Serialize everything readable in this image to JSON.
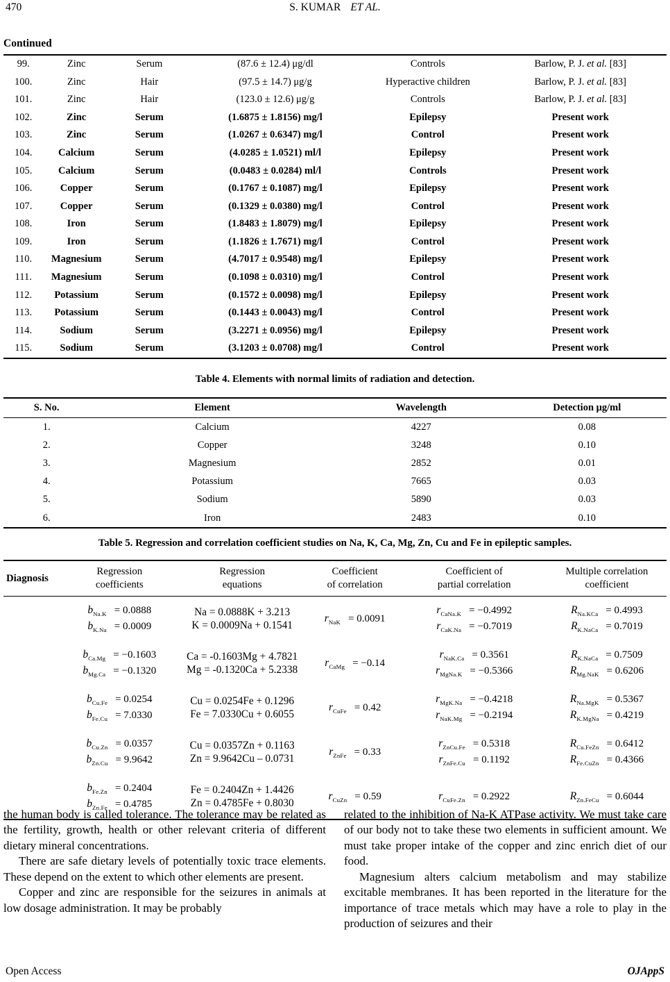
{
  "header": {
    "page_number": "470",
    "author": "S. KUMAR",
    "etal": "ET  AL."
  },
  "continued_table": {
    "label": "Continued",
    "rows": [
      {
        "no": "99.",
        "element": "Zinc",
        "sample": "Serum",
        "value": "(87.6 ± 12.4) μg/dl",
        "condition": "Controls",
        "ref_pre": "Barlow, P. J. ",
        "ref_it": "et al.",
        "ref_post": " [83]",
        "bold": false
      },
      {
        "no": "100.",
        "element": "Zinc",
        "sample": "Hair",
        "value": "(97.5 ± 14.7) μg/g",
        "condition": "Hyperactive children",
        "ref_pre": "Barlow, P. J. ",
        "ref_it": "et al.",
        "ref_post": " [83]",
        "bold": false
      },
      {
        "no": "101.",
        "element": "Zinc",
        "sample": "Hair",
        "value": "(123.0 ± 12.6) μg/g",
        "condition": "Controls",
        "ref_pre": "Barlow, P. J. ",
        "ref_it": "et al.",
        "ref_post": " [83]",
        "bold": false
      },
      {
        "no": "102.",
        "element": "Zinc",
        "sample": "Serum",
        "value": "(1.6875 ± 1.8156) mg/l",
        "condition": "Epilepsy",
        "ref_pre": "Present work",
        "ref_it": "",
        "ref_post": "",
        "bold": true
      },
      {
        "no": "103.",
        "element": "Zinc",
        "sample": "Serum",
        "value": "(1.0267 ± 0.6347) mg/l",
        "condition": "Control",
        "ref_pre": "Present work",
        "ref_it": "",
        "ref_post": "",
        "bold": true
      },
      {
        "no": "104.",
        "element": "Calcium",
        "sample": "Serum",
        "value": "(4.0285 ± 1.0521) ml/l",
        "condition": "Epilepsy",
        "ref_pre": "Present work",
        "ref_it": "",
        "ref_post": "",
        "bold": true
      },
      {
        "no": "105.",
        "element": "Calcium",
        "sample": "Serum",
        "value": "(0.0483 ± 0.0284) ml/l",
        "condition": "Controls",
        "ref_pre": "Present work",
        "ref_it": "",
        "ref_post": "",
        "bold": true
      },
      {
        "no": "106.",
        "element": "Copper",
        "sample": "Serum",
        "value": "(0.1767 ± 0.1087) mg/l",
        "condition": "Epilepsy",
        "ref_pre": "Present work",
        "ref_it": "",
        "ref_post": "",
        "bold": true
      },
      {
        "no": "107.",
        "element": "Copper",
        "sample": "Serum",
        "value": "(0.1329 ± 0.0380) mg/l",
        "condition": "Control",
        "ref_pre": "Present work",
        "ref_it": "",
        "ref_post": "",
        "bold": true
      },
      {
        "no": "108.",
        "element": "Iron",
        "sample": "Serum",
        "value": "(1.8483 ± 1.8079) mg/l",
        "condition": "Epilepsy",
        "ref_pre": "Present work",
        "ref_it": "",
        "ref_post": "",
        "bold": true
      },
      {
        "no": "109.",
        "element": "Iron",
        "sample": "Serum",
        "value": "(1.1826 ± 1.7671) mg/l",
        "condition": "Control",
        "ref_pre": "Present work",
        "ref_it": "",
        "ref_post": "",
        "bold": true
      },
      {
        "no": "110.",
        "element": "Magnesium",
        "sample": "Serum",
        "value": "(4.7017 ± 0.9548) mg/l",
        "condition": "Epilepsy",
        "ref_pre": "Present work",
        "ref_it": "",
        "ref_post": "",
        "bold": true
      },
      {
        "no": "111.",
        "element": "Magnesium",
        "sample": "Serum",
        "value": "(0.1098 ± 0.0310) mg/l",
        "condition": "Control",
        "ref_pre": "Present work",
        "ref_it": "",
        "ref_post": "",
        "bold": true
      },
      {
        "no": "112.",
        "element": "Potassium",
        "sample": "Serum",
        "value": "(0.1572 ± 0.0098) mg/l",
        "condition": "Epilepsy",
        "ref_pre": "Present work",
        "ref_it": "",
        "ref_post": "",
        "bold": true
      },
      {
        "no": "113.",
        "element": "Potassium",
        "sample": "Serum",
        "value": "(0.1443 ± 0.0043) mg/l",
        "condition": "Control",
        "ref_pre": "Present work",
        "ref_it": "",
        "ref_post": "",
        "bold": true
      },
      {
        "no": "114.",
        "element": "Sodium",
        "sample": "Serum",
        "value": "(3.2271 ± 0.0956) mg/l",
        "condition": "Epilepsy",
        "ref_pre": "Present work",
        "ref_it": "",
        "ref_post": "",
        "bold": true
      },
      {
        "no": "115.",
        "element": "Sodium",
        "sample": "Serum",
        "value": "(3.1203 ± 0.0708) mg/l",
        "condition": "Control",
        "ref_pre": "Present work",
        "ref_it": "",
        "ref_post": "",
        "bold": true
      }
    ]
  },
  "table4": {
    "title": "Table 4. Elements with normal limits of radiation and detection.",
    "headers": [
      "S. No.",
      "Element",
      "Wavelength",
      "Detection μg/ml"
    ],
    "rows": [
      [
        "1.",
        "Calcium",
        "4227",
        "0.08"
      ],
      [
        "2.",
        "Copper",
        "3248",
        "0.10"
      ],
      [
        "3.",
        "Magnesium",
        "2852",
        "0.01"
      ],
      [
        "4.",
        "Potassium",
        "7665",
        "0.03"
      ],
      [
        "5.",
        "Sodium",
        "5890",
        "0.03"
      ],
      [
        "6.",
        "Iron",
        "2483",
        "0.10"
      ]
    ]
  },
  "table5": {
    "title": "Table 5. Regression and correlation coefficient studies on Na, K, Ca, Mg, Zn, Cu and Fe in epileptic samples.",
    "headers": [
      "Diagnosis",
      "Regression\ncoefficients",
      "Regression\nequations",
      "Coefficient\nof correlation",
      "Coefficient of\npartial correlation",
      "Multiple correlation\ncoefficient"
    ],
    "groups": [
      {
        "coeffs": [
          {
            "s": "b",
            "sub": "Na.K",
            "v": "= 0.0888"
          },
          {
            "s": "b",
            "sub": "K.Na",
            "v": "= 0.0009"
          }
        ],
        "equations": [
          "Na = 0.0888K + 3.213",
          "K = 0.0009Na + 0.1541"
        ],
        "corr": [
          {
            "s": "r",
            "sub": "NaK",
            "v": "= 0.0091"
          }
        ],
        "partial": [
          {
            "s": "r",
            "sub": "CaNa.K",
            "v": "= −0.4992"
          },
          {
            "s": "r",
            "sub": "CaK.Na",
            "v": "= −0.7019"
          }
        ],
        "multiple": [
          {
            "s": "R",
            "sub": "Na.KCa",
            "v": "= 0.4993"
          },
          {
            "s": "R",
            "sub": "K.NaCa",
            "v": "= 0.7019"
          }
        ]
      },
      {
        "coeffs": [
          {
            "s": "b",
            "sub": "Ca.Mg",
            "v": "= −0.1603"
          },
          {
            "s": "b",
            "sub": "Mg.Ca",
            "v": "= −0.1320"
          }
        ],
        "equations": [
          "Ca = -0.1603Mg + 4.7821",
          "Mg = -0.1320Ca + 5.2338"
        ],
        "corr": [
          {
            "s": "r",
            "sub": "CaMg",
            "v": "= −0.14"
          }
        ],
        "partial": [
          {
            "s": "r",
            "sub": "NaK.Ca",
            "v": "= 0.3561"
          },
          {
            "s": "r",
            "sub": "MgNa.K",
            "v": "= −0.5366"
          }
        ],
        "multiple": [
          {
            "s": "R",
            "sub": "K.NaCa",
            "v": "= 0.7509"
          },
          {
            "s": "R",
            "sub": "Mg.NaK",
            "v": "= 0.6206"
          }
        ]
      },
      {
        "coeffs": [
          {
            "s": "b",
            "sub": "Cu.Fe",
            "v": "= 0.0254"
          },
          {
            "s": "b",
            "sub": "Fe.Cu",
            "v": "= 7.0330"
          }
        ],
        "equations": [
          "Cu = 0.0254Fe + 0.1296",
          "Fe = 7.0330Cu + 0.6055"
        ],
        "corr": [
          {
            "s": "r",
            "sub": "CuFe",
            "v": "= 0.42"
          }
        ],
        "partial": [
          {
            "s": "r",
            "sub": "MgK.Na",
            "v": "= −0.4218"
          },
          {
            "s": "r",
            "sub": "NaK.Mg",
            "v": "= −0.2194"
          }
        ],
        "multiple": [
          {
            "s": "R",
            "sub": "Na.MgK",
            "v": "= 0.5367"
          },
          {
            "s": "R",
            "sub": "K.MgNa",
            "v": "= 0.4219"
          }
        ]
      },
      {
        "coeffs": [
          {
            "s": "b",
            "sub": "Cu.Zn",
            "v": "= 0.0357"
          },
          {
            "s": "b",
            "sub": "Zn.Cu",
            "v": "= 9.9642"
          }
        ],
        "equations": [
          "Cu = 0.0357Zn + 0.1163",
          "Zn = 9.9642Cu – 0.0731"
        ],
        "corr": [
          {
            "s": "r",
            "sub": "ZnFe",
            "v": "= 0.33"
          }
        ],
        "partial": [
          {
            "s": "r",
            "sub": "ZnCu.Fe",
            "v": "= 0.5318"
          },
          {
            "s": "r",
            "sub": "ZnFe.Cu",
            "v": "= 0.1192"
          }
        ],
        "multiple": [
          {
            "s": "R",
            "sub": "Cu.FeZn",
            "v": "= 0.6412"
          },
          {
            "s": "R",
            "sub": "Fe.CuZn",
            "v": "= 0.4366"
          }
        ]
      },
      {
        "coeffs": [
          {
            "s": "b",
            "sub": "Fe.Zn",
            "v": "= 0.2404"
          },
          {
            "s": "b",
            "sub": "Zn.Fe",
            "v": "= 0.4785"
          }
        ],
        "equations": [
          "Fe = 0.2404Zn + 1.4426",
          "Zn = 0.4785Fe + 0.8030"
        ],
        "corr": [
          {
            "s": "r",
            "sub": "CuZn",
            "v": "= 0.59"
          }
        ],
        "partial": [
          {
            "s": "r",
            "sub": "CuFe.Zn",
            "v": "= 0.2922"
          }
        ],
        "multiple": [
          {
            "s": "R",
            "sub": "Zn.FeCu",
            "v": "= 0.6044"
          }
        ]
      }
    ]
  },
  "body": {
    "left": [
      "the human body is called tolerance. The tolerance may be related as the fertility, growth, health or other relevant criteria of different dietary mineral concentrations.",
      "There are safe dietary levels of potentially toxic trace elements. These depend on the extent to which other elements are present.",
      "Copper and zinc are responsible for the seizures in animals at low dosage administration. It may be probably"
    ],
    "right": [
      "related to the inhibition of Na-K ATPase activity. We must take care of our body not to take these two elements in sufficient amount. We must take proper intake of the copper and zinc enrich diet of our food.",
      "Magnesium alters calcium metabolism and may stabilize excitable membranes. It has been reported in the literature for the importance of trace metals which may have a role to play in the production of seizures and their"
    ]
  },
  "footer": {
    "left": "Open  Access",
    "right": "OJAppS"
  }
}
